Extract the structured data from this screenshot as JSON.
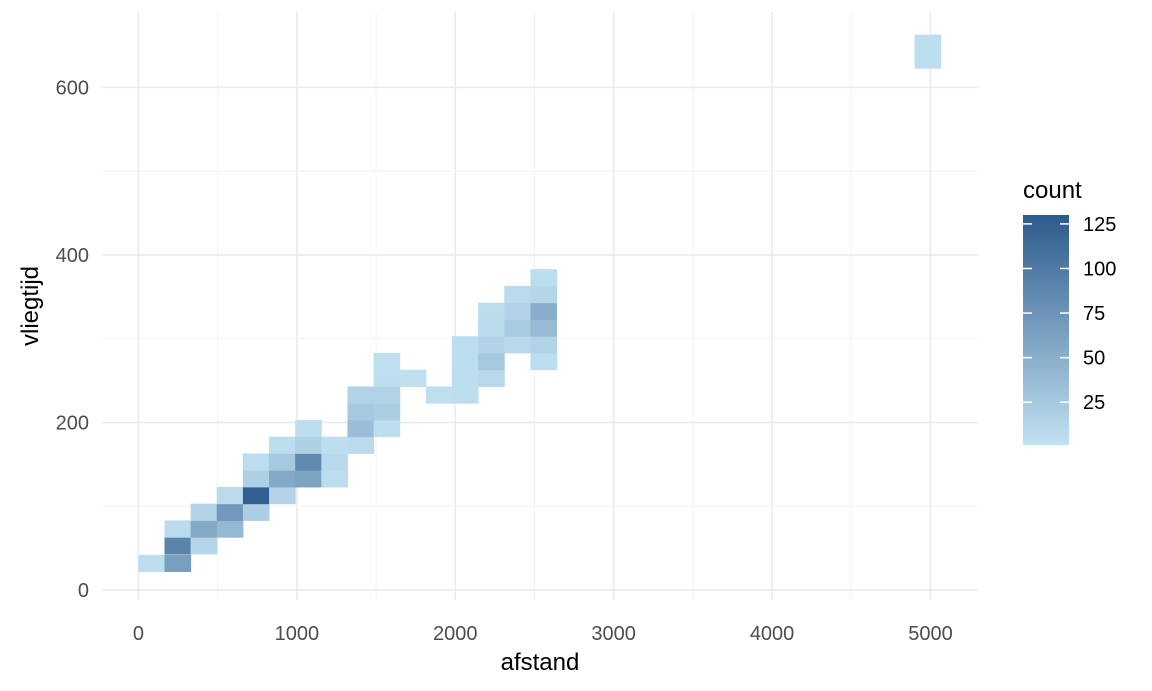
{
  "chart_data": {
    "type": "heatmap",
    "xlabel": "afstand",
    "ylabel": "vliegtijd",
    "xlim": [
      -230,
      5300
    ],
    "ylim": [
      -12,
      690
    ],
    "x_ticks": [
      0,
      1000,
      2000,
      3000,
      4000,
      5000
    ],
    "y_ticks": [
      0,
      200,
      400,
      600
    ],
    "grid": true,
    "bin_width": 165,
    "bin_height": 20,
    "legend": {
      "title": "count",
      "position": "right",
      "ticks": [
        25,
        50,
        75,
        100,
        125
      ],
      "range": [
        1,
        130
      ],
      "low_color": "#c2e2f2",
      "high_color": "#2c5a8b"
    },
    "bins": [
      {
        "x": 82,
        "y": 32,
        "count": 5
      },
      {
        "x": 247,
        "y": 32,
        "count": 65
      },
      {
        "x": 247,
        "y": 53,
        "count": 90
      },
      {
        "x": 247,
        "y": 73,
        "count": 8
      },
      {
        "x": 412,
        "y": 53,
        "count": 12
      },
      {
        "x": 412,
        "y": 73,
        "count": 55
      },
      {
        "x": 412,
        "y": 93,
        "count": 15
      },
      {
        "x": 577,
        "y": 73,
        "count": 40
      },
      {
        "x": 577,
        "y": 93,
        "count": 70
      },
      {
        "x": 577,
        "y": 113,
        "count": 8
      },
      {
        "x": 742,
        "y": 93,
        "count": 20
      },
      {
        "x": 742,
        "y": 113,
        "count": 125
      },
      {
        "x": 742,
        "y": 133,
        "count": 18
      },
      {
        "x": 742,
        "y": 153,
        "count": 6
      },
      {
        "x": 907,
        "y": 113,
        "count": 15
      },
      {
        "x": 907,
        "y": 133,
        "count": 55
      },
      {
        "x": 907,
        "y": 153,
        "count": 25
      },
      {
        "x": 907,
        "y": 173,
        "count": 6
      },
      {
        "x": 1072,
        "y": 133,
        "count": 60
      },
      {
        "x": 1072,
        "y": 153,
        "count": 85
      },
      {
        "x": 1072,
        "y": 173,
        "count": 18
      },
      {
        "x": 1072,
        "y": 193,
        "count": 5
      },
      {
        "x": 1237,
        "y": 133,
        "count": 6
      },
      {
        "x": 1237,
        "y": 153,
        "count": 10
      },
      {
        "x": 1237,
        "y": 173,
        "count": 5
      },
      {
        "x": 1402,
        "y": 173,
        "count": 8
      },
      {
        "x": 1402,
        "y": 193,
        "count": 35
      },
      {
        "x": 1402,
        "y": 213,
        "count": 25
      },
      {
        "x": 1402,
        "y": 233,
        "count": 15
      },
      {
        "x": 1567,
        "y": 193,
        "count": 5
      },
      {
        "x": 1567,
        "y": 213,
        "count": 20
      },
      {
        "x": 1567,
        "y": 233,
        "count": 15
      },
      {
        "x": 1567,
        "y": 253,
        "count": 5
      },
      {
        "x": 1567,
        "y": 273,
        "count": 4
      },
      {
        "x": 1732,
        "y": 253,
        "count": 3
      },
      {
        "x": 1897,
        "y": 233,
        "count": 4
      },
      {
        "x": 2062,
        "y": 233,
        "count": 5
      },
      {
        "x": 2062,
        "y": 253,
        "count": 6
      },
      {
        "x": 2062,
        "y": 273,
        "count": 5
      },
      {
        "x": 2062,
        "y": 293,
        "count": 5
      },
      {
        "x": 2227,
        "y": 253,
        "count": 10
      },
      {
        "x": 2227,
        "y": 273,
        "count": 25
      },
      {
        "x": 2227,
        "y": 293,
        "count": 15
      },
      {
        "x": 2227,
        "y": 313,
        "count": 8
      },
      {
        "x": 2227,
        "y": 333,
        "count": 6
      },
      {
        "x": 2392,
        "y": 293,
        "count": 10
      },
      {
        "x": 2392,
        "y": 313,
        "count": 22
      },
      {
        "x": 2392,
        "y": 333,
        "count": 15
      },
      {
        "x": 2392,
        "y": 353,
        "count": 8
      },
      {
        "x": 2557,
        "y": 273,
        "count": 5
      },
      {
        "x": 2557,
        "y": 293,
        "count": 15
      },
      {
        "x": 2557,
        "y": 313,
        "count": 38
      },
      {
        "x": 2557,
        "y": 333,
        "count": 50
      },
      {
        "x": 2557,
        "y": 353,
        "count": 12
      },
      {
        "x": 2557,
        "y": 373,
        "count": 6
      },
      {
        "x": 4982,
        "y": 633,
        "count": 5
      },
      {
        "x": 4982,
        "y": 653,
        "count": 5
      }
    ]
  }
}
